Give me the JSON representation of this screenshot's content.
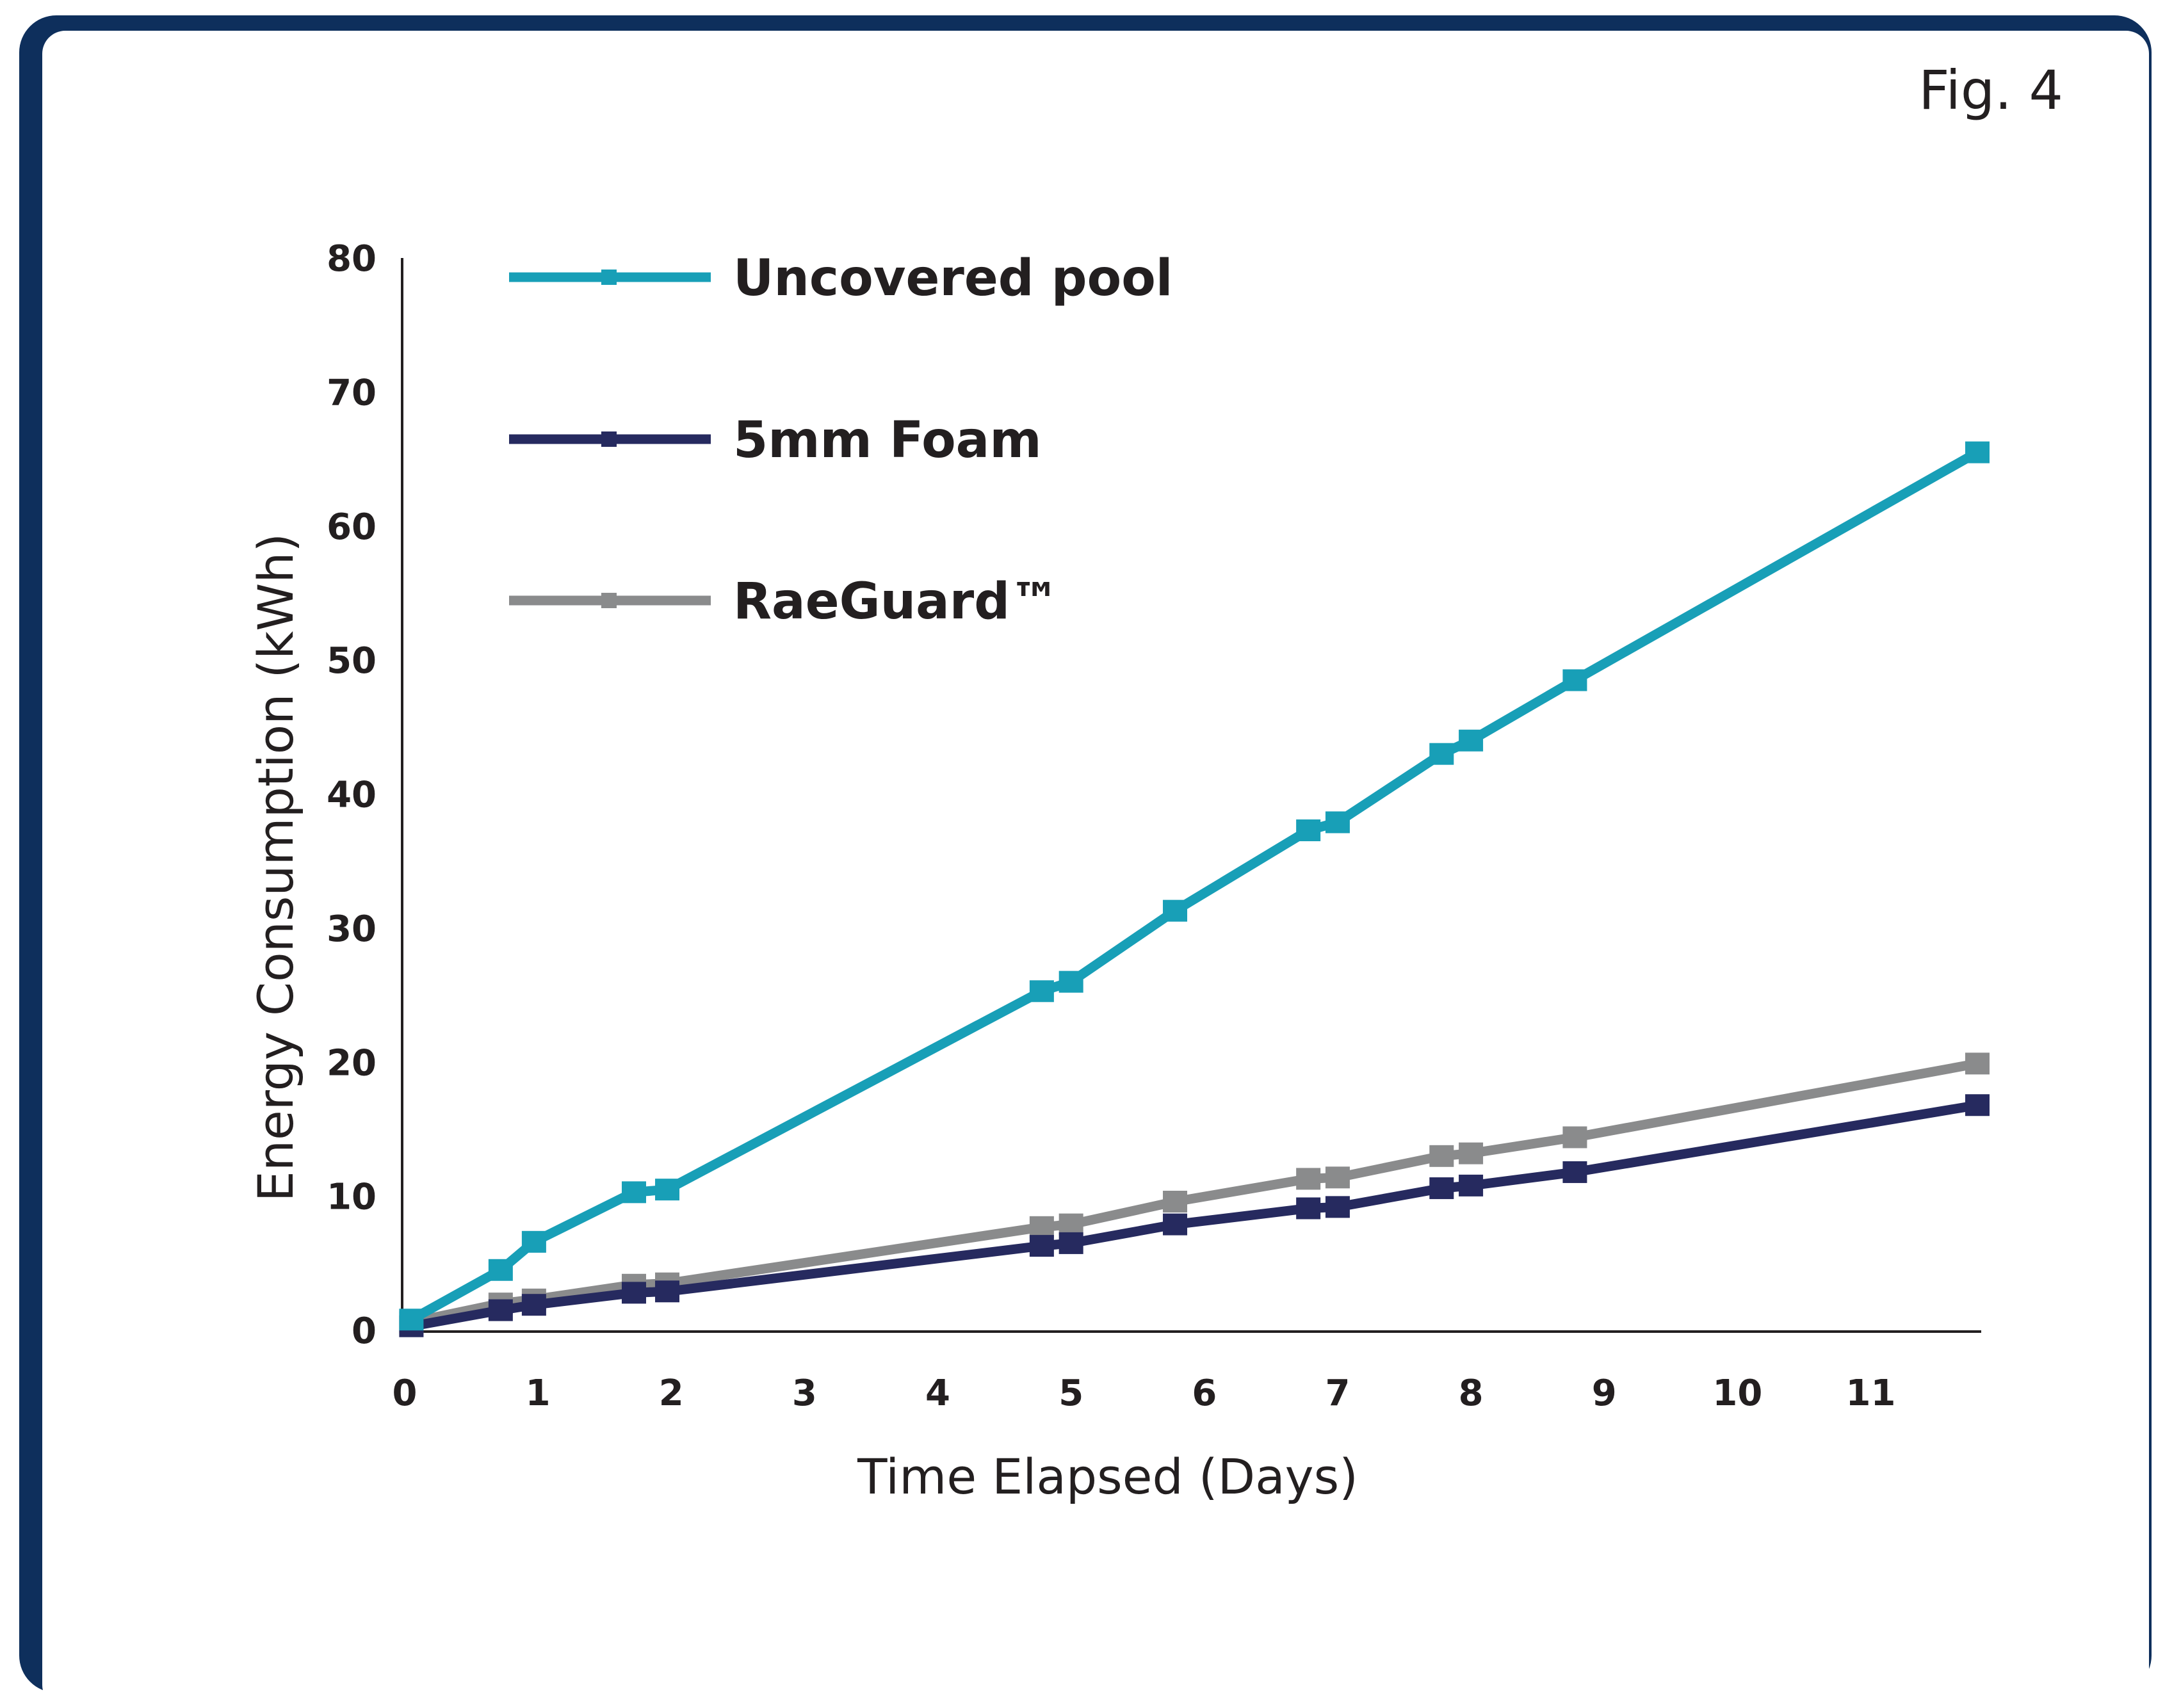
{
  "figure_label": "Fig. 4",
  "chart_data": {
    "type": "line",
    "title": "",
    "xlabel": "Time Elapsed (Days)",
    "ylabel": "Energy Consumption (kWh)",
    "xlim": [
      0,
      11.8
    ],
    "ylim": [
      0,
      80
    ],
    "x_ticks": [
      0,
      1,
      2,
      3,
      4,
      5,
      6,
      7,
      8,
      9,
      10,
      11
    ],
    "y_ticks": [
      0,
      10,
      20,
      30,
      40,
      50,
      60,
      70,
      80
    ],
    "grid": false,
    "legend_position": "top-left",
    "series": [
      {
        "name": "Uncovered pool",
        "color": "#189fb7",
        "x": [
          0.05,
          0.72,
          0.97,
          1.72,
          1.97,
          4.78,
          5.0,
          5.78,
          6.78,
          7.0,
          7.78,
          8.0,
          8.78,
          11.8
        ],
        "y": [
          0.8,
          4.5,
          6.6,
          10.3,
          10.5,
          25.3,
          26.0,
          31.3,
          37.3,
          37.9,
          43.0,
          44.0,
          48.5,
          65.5
        ]
      },
      {
        "name": "5mm Foam",
        "color": "#262a5f",
        "x": [
          0.05,
          0.72,
          0.97,
          1.72,
          1.97,
          4.78,
          5.0,
          5.78,
          6.78,
          7.0,
          7.78,
          8.0,
          8.78,
          11.8
        ],
        "y": [
          0.3,
          1.5,
          1.9,
          2.8,
          2.9,
          6.3,
          6.5,
          7.9,
          9.1,
          9.2,
          10.6,
          10.8,
          11.8,
          16.8
        ]
      },
      {
        "name": "RaeGuard™",
        "color": "#8a8b8c",
        "x": [
          0.05,
          0.72,
          0.97,
          1.72,
          1.97,
          4.78,
          5.0,
          5.78,
          6.78,
          7.0,
          7.78,
          8.0,
          8.78,
          11.8
        ],
        "y": [
          0.6,
          2.0,
          2.3,
          3.4,
          3.5,
          7.7,
          7.9,
          9.6,
          11.3,
          11.4,
          13.0,
          13.2,
          14.4,
          19.9
        ]
      }
    ]
  }
}
